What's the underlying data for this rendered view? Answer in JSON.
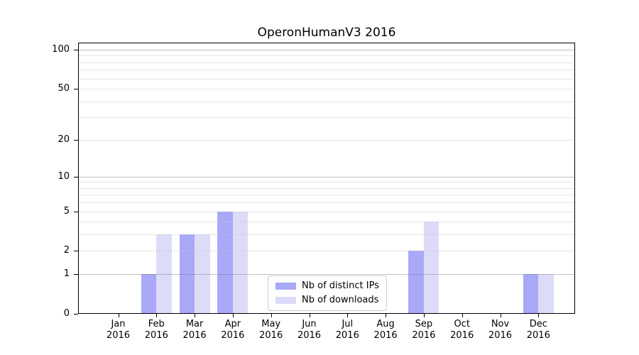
{
  "chart_data": {
    "type": "bar",
    "title": "OperonHumanV3 2016",
    "categories": [
      "Jan",
      "Feb",
      "Mar",
      "Apr",
      "May",
      "Jun",
      "Jul",
      "Aug",
      "Sep",
      "Oct",
      "Nov",
      "Dec"
    ],
    "x_year_label": "2016",
    "series": [
      {
        "name": "Nb of distinct IPs",
        "color": "#a9a9f8",
        "values": [
          0,
          1,
          3,
          5,
          0,
          0,
          0,
          0,
          2,
          0,
          0,
          1
        ]
      },
      {
        "name": "Nb of downloads",
        "color": "#dcdcf8",
        "values": [
          0,
          3,
          3,
          5,
          0,
          0,
          0,
          0,
          4,
          0,
          0,
          1
        ]
      }
    ],
    "y_axis": {
      "scale": "log10(value+1)",
      "tick_labels": [
        0,
        1,
        2,
        5,
        10,
        20,
        50,
        100
      ],
      "major_gridlines": [
        1,
        10,
        100
      ],
      "minor_gridlines": [
        2,
        3,
        4,
        5,
        6,
        7,
        8,
        9,
        20,
        30,
        40,
        50,
        60,
        70,
        80,
        90
      ],
      "ylim": [
        0,
        115
      ]
    },
    "legend": {
      "position": "lower center inside plot"
    },
    "colors": {
      "major_grid": "rgba(120,120,120,0.45)",
      "minor_grid": "rgba(200,200,200,0.45)",
      "axis": "#000000",
      "background": "#ffffff"
    }
  }
}
